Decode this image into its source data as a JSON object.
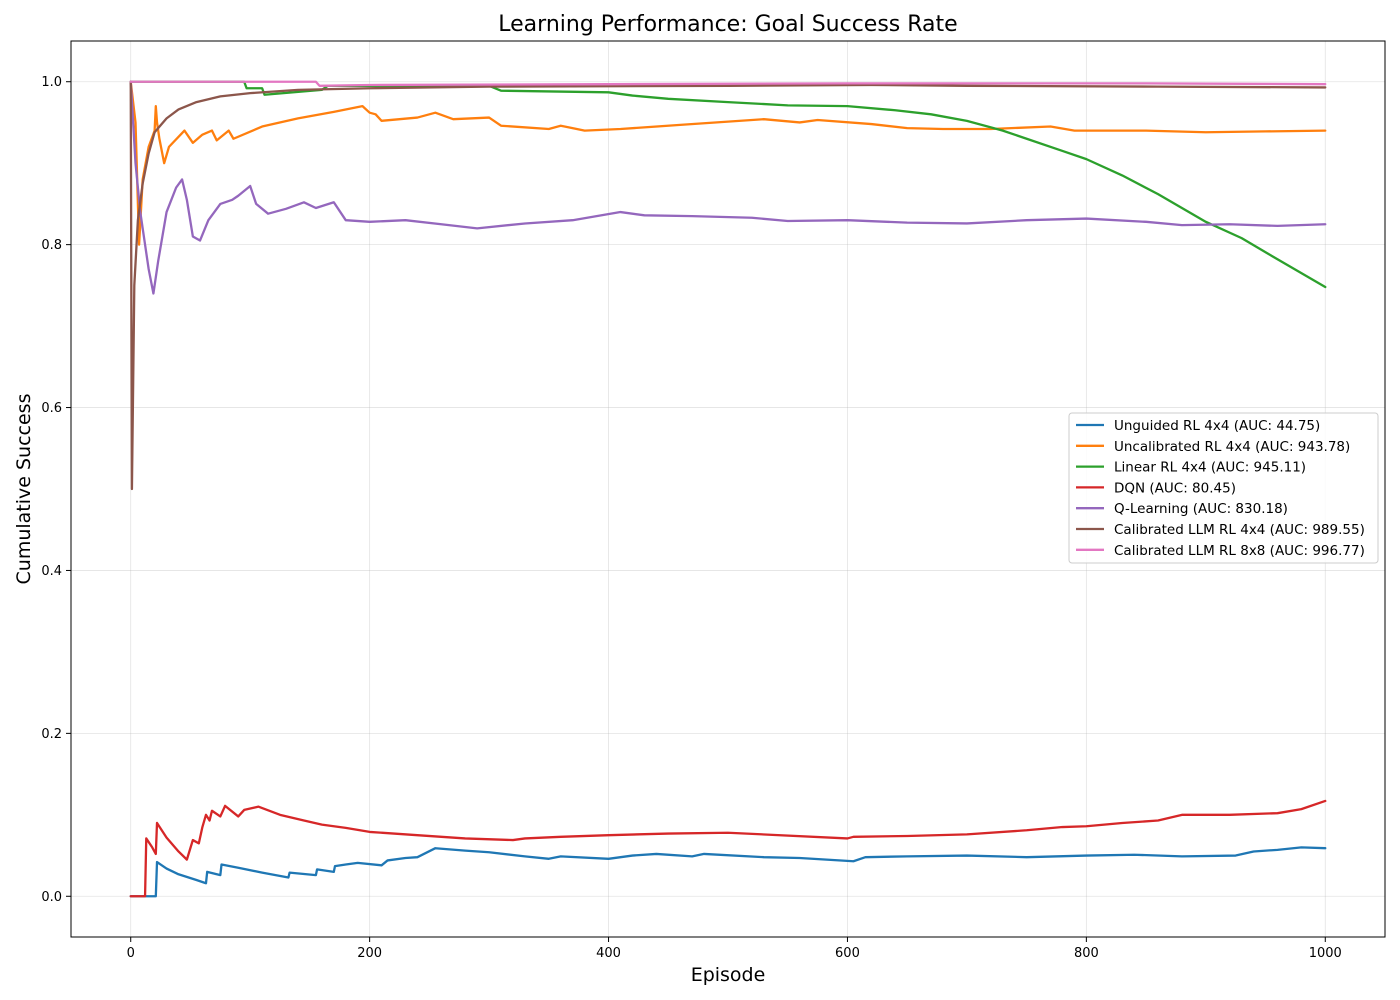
{
  "chart_data": {
    "type": "line",
    "title": "Learning Performance: Goal Success Rate",
    "xlabel": "Episode",
    "ylabel": "Cumulative Success",
    "xlim": [
      -50,
      1050
    ],
    "ylim": [
      -0.05,
      1.05
    ],
    "xticks": [
      0,
      200,
      400,
      600,
      800,
      1000
    ],
    "yticks": [
      0.0,
      0.2,
      0.4,
      0.6,
      0.8,
      1.0
    ],
    "grid": true,
    "legend_position": "center-right",
    "series": [
      {
        "name": "Unguided RL 4x4 (AUC: 44.75)",
        "color": "#1f77b4",
        "points": [
          [
            0,
            0
          ],
          [
            21,
            0
          ],
          [
            22,
            0.042
          ],
          [
            30,
            0.034
          ],
          [
            40,
            0.027
          ],
          [
            55,
            0.02
          ],
          [
            63,
            0.016
          ],
          [
            64,
            0.03
          ],
          [
            75,
            0.026
          ],
          [
            76,
            0.039
          ],
          [
            90,
            0.035
          ],
          [
            110,
            0.029
          ],
          [
            132,
            0.023
          ],
          [
            133,
            0.029
          ],
          [
            155,
            0.026
          ],
          [
            156,
            0.033
          ],
          [
            170,
            0.03
          ],
          [
            171,
            0.037
          ],
          [
            180,
            0.039
          ],
          [
            190,
            0.041
          ],
          [
            210,
            0.038
          ],
          [
            215,
            0.044
          ],
          [
            230,
            0.047
          ],
          [
            240,
            0.048
          ],
          [
            255,
            0.059
          ],
          [
            280,
            0.056
          ],
          [
            300,
            0.054
          ],
          [
            330,
            0.049
          ],
          [
            350,
            0.046
          ],
          [
            360,
            0.049
          ],
          [
            400,
            0.046
          ],
          [
            420,
            0.05
          ],
          [
            440,
            0.052
          ],
          [
            470,
            0.049
          ],
          [
            480,
            0.052
          ],
          [
            530,
            0.048
          ],
          [
            560,
            0.047
          ],
          [
            605,
            0.043
          ],
          [
            615,
            0.048
          ],
          [
            650,
            0.049
          ],
          [
            700,
            0.05
          ],
          [
            750,
            0.048
          ],
          [
            800,
            0.05
          ],
          [
            840,
            0.051
          ],
          [
            880,
            0.049
          ],
          [
            925,
            0.05
          ],
          [
            940,
            0.055
          ],
          [
            960,
            0.057
          ],
          [
            980,
            0.06
          ],
          [
            1000,
            0.059
          ]
        ]
      },
      {
        "name": "Uncalibrated RL 4x4 (AUC: 943.78)",
        "color": "#ff7f0e",
        "points": [
          [
            0,
            1.0
          ],
          [
            4,
            0.95
          ],
          [
            7,
            0.8
          ],
          [
            10,
            0.88
          ],
          [
            15,
            0.92
          ],
          [
            20,
            0.94
          ],
          [
            21,
            0.97
          ],
          [
            22,
            0.95
          ],
          [
            24,
            0.93
          ],
          [
            28,
            0.9
          ],
          [
            32,
            0.92
          ],
          [
            45,
            0.94
          ],
          [
            52,
            0.925
          ],
          [
            60,
            0.935
          ],
          [
            68,
            0.94
          ],
          [
            72,
            0.928
          ],
          [
            82,
            0.94
          ],
          [
            86,
            0.93
          ],
          [
            110,
            0.945
          ],
          [
            140,
            0.955
          ],
          [
            170,
            0.963
          ],
          [
            194,
            0.97
          ],
          [
            200,
            0.962
          ],
          [
            205,
            0.96
          ],
          [
            210,
            0.952
          ],
          [
            240,
            0.956
          ],
          [
            255,
            0.962
          ],
          [
            270,
            0.954
          ],
          [
            300,
            0.956
          ],
          [
            310,
            0.946
          ],
          [
            350,
            0.942
          ],
          [
            360,
            0.946
          ],
          [
            380,
            0.94
          ],
          [
            410,
            0.942
          ],
          [
            460,
            0.947
          ],
          [
            530,
            0.954
          ],
          [
            560,
            0.95
          ],
          [
            575,
            0.953
          ],
          [
            620,
            0.948
          ],
          [
            650,
            0.943
          ],
          [
            680,
            0.942
          ],
          [
            720,
            0.942
          ],
          [
            770,
            0.945
          ],
          [
            790,
            0.94
          ],
          [
            850,
            0.94
          ],
          [
            900,
            0.938
          ],
          [
            950,
            0.939
          ],
          [
            1000,
            0.94
          ]
        ]
      },
      {
        "name": "Linear RL 4x4 (AUC: 945.11)",
        "color": "#2ca02c",
        "points": [
          [
            0,
            1.0
          ],
          [
            95,
            1.0
          ],
          [
            97,
            0.992
          ],
          [
            110,
            0.992
          ],
          [
            112,
            0.984
          ],
          [
            160,
            0.99
          ],
          [
            165,
            0.995
          ],
          [
            300,
            0.995
          ],
          [
            310,
            0.989
          ],
          [
            400,
            0.987
          ],
          [
            420,
            0.983
          ],
          [
            450,
            0.979
          ],
          [
            500,
            0.975
          ],
          [
            550,
            0.971
          ],
          [
            600,
            0.97
          ],
          [
            640,
            0.965
          ],
          [
            670,
            0.96
          ],
          [
            700,
            0.952
          ],
          [
            730,
            0.94
          ],
          [
            750,
            0.93
          ],
          [
            780,
            0.915
          ],
          [
            800,
            0.905
          ],
          [
            830,
            0.885
          ],
          [
            860,
            0.862
          ],
          [
            880,
            0.845
          ],
          [
            900,
            0.828
          ],
          [
            930,
            0.808
          ],
          [
            960,
            0.782
          ],
          [
            1000,
            0.748
          ]
        ]
      },
      {
        "name": "DQN (AUC: 80.45)",
        "color": "#d62728",
        "points": [
          [
            0,
            0
          ],
          [
            12,
            0
          ],
          [
            13,
            0.071
          ],
          [
            18,
            0.06
          ],
          [
            21,
            0.052
          ],
          [
            22,
            0.09
          ],
          [
            30,
            0.072
          ],
          [
            40,
            0.055
          ],
          [
            47,
            0.045
          ],
          [
            52,
            0.069
          ],
          [
            57,
            0.065
          ],
          [
            60,
            0.085
          ],
          [
            63,
            0.1
          ],
          [
            66,
            0.093
          ],
          [
            68,
            0.105
          ],
          [
            75,
            0.098
          ],
          [
            79,
            0.111
          ],
          [
            90,
            0.098
          ],
          [
            95,
            0.106
          ],
          [
            107,
            0.11
          ],
          [
            125,
            0.1
          ],
          [
            145,
            0.093
          ],
          [
            160,
            0.088
          ],
          [
            180,
            0.084
          ],
          [
            200,
            0.079
          ],
          [
            240,
            0.075
          ],
          [
            280,
            0.071
          ],
          [
            320,
            0.069
          ],
          [
            330,
            0.071
          ],
          [
            360,
            0.073
          ],
          [
            400,
            0.075
          ],
          [
            450,
            0.077
          ],
          [
            500,
            0.078
          ],
          [
            600,
            0.071
          ],
          [
            605,
            0.073
          ],
          [
            650,
            0.074
          ],
          [
            700,
            0.076
          ],
          [
            750,
            0.081
          ],
          [
            780,
            0.085
          ],
          [
            800,
            0.086
          ],
          [
            830,
            0.09
          ],
          [
            860,
            0.093
          ],
          [
            880,
            0.1
          ],
          [
            920,
            0.1
          ],
          [
            960,
            0.102
          ],
          [
            980,
            0.107
          ],
          [
            1000,
            0.117
          ]
        ]
      },
      {
        "name": "Q-Learning (AUC: 830.18)",
        "color": "#9467bd",
        "points": [
          [
            0,
            1.0
          ],
          [
            4,
            0.9
          ],
          [
            8,
            0.84
          ],
          [
            12,
            0.8
          ],
          [
            15,
            0.77
          ],
          [
            19,
            0.74
          ],
          [
            23,
            0.78
          ],
          [
            30,
            0.84
          ],
          [
            38,
            0.87
          ],
          [
            43,
            0.88
          ],
          [
            47,
            0.855
          ],
          [
            52,
            0.81
          ],
          [
            58,
            0.805
          ],
          [
            65,
            0.83
          ],
          [
            75,
            0.85
          ],
          [
            85,
            0.855
          ],
          [
            90,
            0.86
          ],
          [
            100,
            0.872
          ],
          [
            105,
            0.85
          ],
          [
            115,
            0.838
          ],
          [
            130,
            0.844
          ],
          [
            145,
            0.852
          ],
          [
            155,
            0.845
          ],
          [
            170,
            0.852
          ],
          [
            180,
            0.83
          ],
          [
            200,
            0.828
          ],
          [
            230,
            0.83
          ],
          [
            260,
            0.825
          ],
          [
            290,
            0.82
          ],
          [
            330,
            0.826
          ],
          [
            370,
            0.83
          ],
          [
            410,
            0.84
          ],
          [
            430,
            0.836
          ],
          [
            470,
            0.835
          ],
          [
            520,
            0.833
          ],
          [
            550,
            0.829
          ],
          [
            600,
            0.83
          ],
          [
            650,
            0.827
          ],
          [
            700,
            0.826
          ],
          [
            750,
            0.83
          ],
          [
            800,
            0.832
          ],
          [
            850,
            0.828
          ],
          [
            880,
            0.824
          ],
          [
            920,
            0.825
          ],
          [
            960,
            0.823
          ],
          [
            1000,
            0.825
          ]
        ]
      },
      {
        "name": "Calibrated LLM RL 4x4 (AUC: 989.55)",
        "color": "#8c564b",
        "points": [
          [
            0,
            1.0
          ],
          [
            1,
            0.5
          ],
          [
            3,
            0.75
          ],
          [
            6,
            0.83
          ],
          [
            10,
            0.875
          ],
          [
            15,
            0.912
          ],
          [
            20,
            0.938
          ],
          [
            30,
            0.955
          ],
          [
            40,
            0.966
          ],
          [
            55,
            0.975
          ],
          [
            75,
            0.982
          ],
          [
            100,
            0.986
          ],
          [
            140,
            0.99
          ],
          [
            200,
            0.992
          ],
          [
            300,
            0.994
          ],
          [
            500,
            0.995
          ],
          [
            620,
            0.996
          ],
          [
            700,
            0.995
          ],
          [
            860,
            0.994
          ],
          [
            1000,
            0.993
          ]
        ]
      },
      {
        "name": "Calibrated LLM RL 8x8 (AUC: 996.77)",
        "color": "#e377c2",
        "points": [
          [
            0,
            1.0
          ],
          [
            155,
            1.0
          ],
          [
            158,
            0.995
          ],
          [
            200,
            0.996
          ],
          [
            400,
            0.997
          ],
          [
            600,
            0.998
          ],
          [
            690,
            0.998
          ],
          [
            700,
            0.998
          ],
          [
            850,
            0.998
          ],
          [
            1000,
            0.997
          ]
        ]
      }
    ]
  }
}
